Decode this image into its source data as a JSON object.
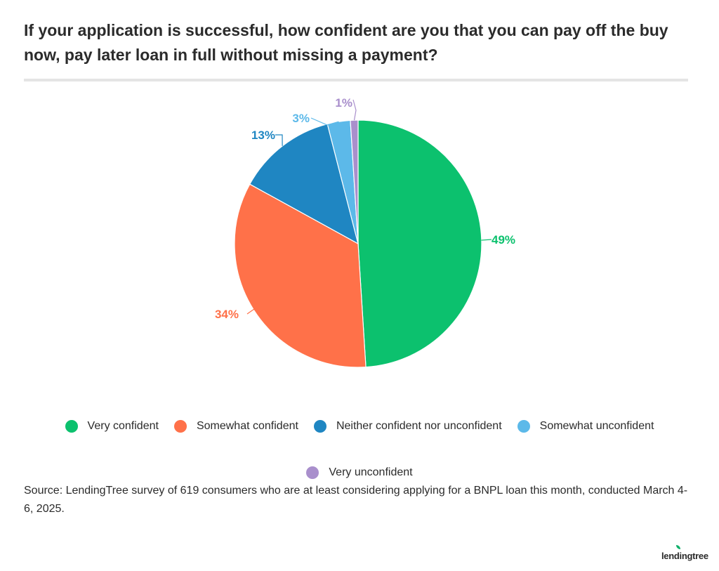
{
  "title": "If your application is successful, how confident are you that you can pay off the buy now, pay later loan in full without missing a payment?",
  "source": "Source: LendingTree survey of 619 consumers who are at least considering applying for a BNPL loan this month, conducted March 4-6, 2025.",
  "brand": "lendingtree",
  "chart_data": {
    "type": "pie",
    "title": "If your application is successful, how confident are you that you can pay off the buy now, pay later loan in full without missing a payment?",
    "legend_position": "bottom",
    "slices": [
      {
        "name": "Very confident",
        "value": 49,
        "label": "49%",
        "color": "#0cc16e"
      },
      {
        "name": "Somewhat confident",
        "value": 34,
        "label": "34%",
        "color": "#ff7149"
      },
      {
        "name": "Neither confident nor unconfident",
        "value": 13,
        "label": "13%",
        "color": "#1f86c2"
      },
      {
        "name": "Somewhat unconfident",
        "value": 3,
        "label": "3%",
        "color": "#5cb9e9"
      },
      {
        "name": "Very unconfident",
        "value": 1,
        "label": "1%",
        "color": "#a98fcc"
      }
    ]
  }
}
